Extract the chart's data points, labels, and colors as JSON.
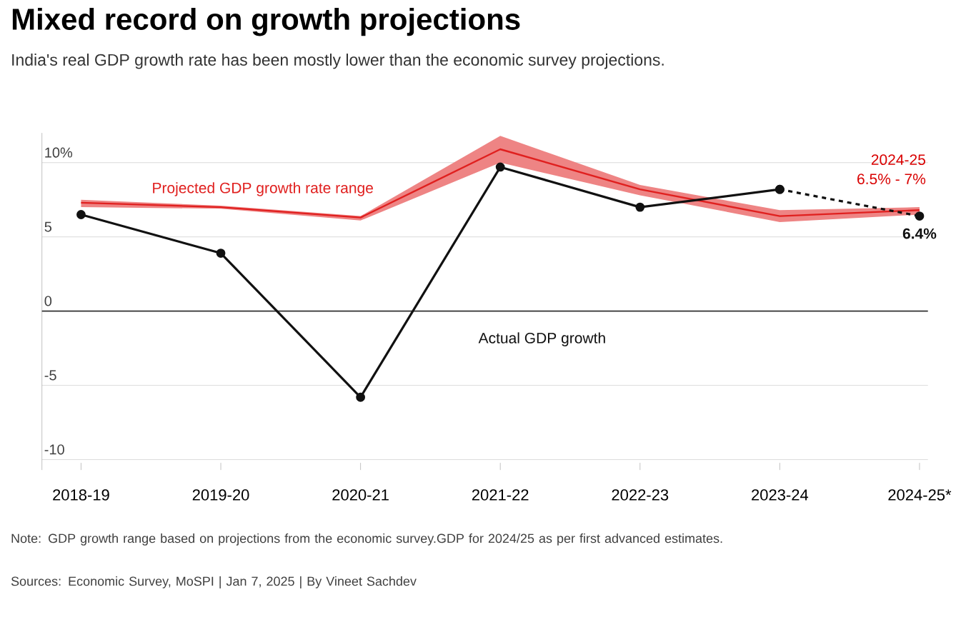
{
  "chart_data": {
    "type": "line",
    "title": "Mixed record on growth projections",
    "subtitle": "India's real GDP growth rate has been mostly lower than the economic survey projections.",
    "categories": [
      "2018-19",
      "2019-20",
      "2020-21",
      "2021-22",
      "2022-23",
      "2023-24",
      "2024-25*"
    ],
    "series": [
      {
        "name": "Projected GDP growth rate range",
        "type": "line",
        "color": "#e0201f",
        "marker": "none",
        "values": [
          7.3,
          7.0,
          6.3,
          10.9,
          8.2,
          6.4,
          6.8
        ],
        "lower": [
          7.0,
          6.9,
          6.1,
          10.0,
          7.8,
          6.0,
          6.5
        ],
        "upper": [
          7.5,
          7.1,
          6.4,
          11.8,
          8.5,
          6.8,
          7.0
        ]
      },
      {
        "name": "Actual GDP growth",
        "color": "#111111",
        "values": [
          6.5,
          3.9,
          -5.8,
          9.7,
          7.0,
          8.2,
          null
        ]
      },
      {
        "color": "#111111",
        "line_style": "dashed",
        "values": [
          null,
          null,
          null,
          null,
          null,
          8.2,
          6.4
        ],
        "value_labels": [
          null,
          null,
          null,
          null,
          null,
          null,
          "6.4%"
        ]
      }
    ],
    "marker": "circle",
    "grid": "y",
    "ylim": [
      -10.7,
      12
    ],
    "yticks": [
      {
        "value": -10,
        "label": "-10"
      },
      {
        "value": -5,
        "label": "-5"
      },
      {
        "value": 0,
        "label": "0"
      },
      {
        "value": 5,
        "label": "5"
      },
      {
        "value": 10,
        "label": "10%"
      }
    ],
    "ref_lines": [
      {
        "axis": "y",
        "value": 0,
        "color": "#333333"
      }
    ],
    "annotations": [
      "2024-25",
      "6.5% - 7%",
      "Note: GDP growth range based on projections from the economic survey.GDP for 2024/25 as per first advanced estimates.",
      "Sources: Economic Survey, MoSPI | Jan 7, 2025 | By Vineet Sachdev"
    ]
  }
}
